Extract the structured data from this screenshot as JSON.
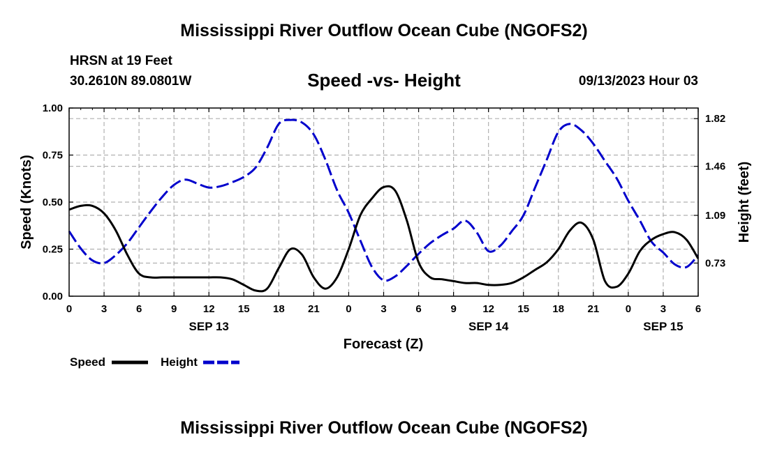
{
  "page": {
    "title": "Mississippi River Outflow Ocean Cube (NGOFS2)",
    "footer_title": "Mississippi River Outflow Ocean Cube (NGOFS2)",
    "station": "HRSN at 19 Feet",
    "coordinates": "30.2610N  89.0801W",
    "datetime": "09/13/2023 Hour 03"
  },
  "chart_data": {
    "type": "line",
    "title": "Speed -vs- Height",
    "xlabel": "Forecast (Z)",
    "ylabel": "Speed (Knots)",
    "y2label": "Height (feet)",
    "x_range": [
      0,
      54
    ],
    "ylim": [
      0,
      1.0
    ],
    "y2lim": [
      0.48,
      1.9
    ],
    "x_ticks": [
      0,
      3,
      6,
      9,
      12,
      15,
      18,
      21,
      24,
      27,
      30,
      33,
      36,
      39,
      42,
      45,
      48,
      51,
      54
    ],
    "x_tick_labels": [
      "0",
      "3",
      "6",
      "9",
      "12",
      "15",
      "18",
      "21",
      "0",
      "3",
      "6",
      "9",
      "12",
      "15",
      "18",
      "21",
      "0",
      "3",
      "6"
    ],
    "day_labels": [
      {
        "label": "SEP 13",
        "x": 12
      },
      {
        "label": "SEP 14",
        "x": 36
      },
      {
        "label": "SEP 15",
        "x": 51
      }
    ],
    "y_ticks": [
      0,
      0.25,
      0.5,
      0.75,
      1.0
    ],
    "y_tick_labels": [
      "0.00",
      "0.25",
      "0.50",
      "0.75",
      "1.00"
    ],
    "y2_ticks": [
      0.73,
      1.09,
      1.46,
      1.82
    ],
    "y2_tick_labels": [
      "0.73",
      "1.09",
      "1.46",
      "1.82"
    ],
    "grid": true,
    "legend_position": "bottom-left",
    "series": [
      {
        "name": "Speed",
        "axis": "left",
        "color": "#000000",
        "dash": "solid",
        "x": [
          0,
          1,
          2,
          3,
          4,
          5,
          6,
          7,
          8,
          9,
          10,
          11,
          12,
          13,
          14,
          15,
          16,
          17,
          18,
          19,
          20,
          21,
          22,
          23,
          24,
          25,
          26,
          27,
          28,
          29,
          30,
          31,
          32,
          33,
          34,
          35,
          36,
          37,
          38,
          39,
          40,
          41,
          42,
          43,
          44,
          45,
          46,
          47,
          48,
          49,
          50,
          51,
          52,
          53,
          54
        ],
        "values": [
          0.46,
          0.48,
          0.48,
          0.44,
          0.35,
          0.22,
          0.12,
          0.1,
          0.1,
          0.1,
          0.1,
          0.1,
          0.1,
          0.1,
          0.09,
          0.06,
          0.03,
          0.04,
          0.15,
          0.25,
          0.22,
          0.1,
          0.04,
          0.1,
          0.25,
          0.43,
          0.52,
          0.58,
          0.56,
          0.4,
          0.18,
          0.1,
          0.09,
          0.08,
          0.07,
          0.07,
          0.06,
          0.06,
          0.07,
          0.1,
          0.14,
          0.18,
          0.25,
          0.35,
          0.39,
          0.3,
          0.08,
          0.05,
          0.12,
          0.24,
          0.3,
          0.33,
          0.34,
          0.3,
          0.2
        ]
      },
      {
        "name": "Height",
        "axis": "right",
        "color": "#0000cc",
        "dash": "dashed",
        "x": [
          0,
          1,
          2,
          3,
          4,
          5,
          6,
          7,
          8,
          9,
          10,
          11,
          12,
          13,
          14,
          15,
          16,
          17,
          18,
          19,
          20,
          21,
          22,
          23,
          24,
          25,
          26,
          27,
          28,
          29,
          30,
          31,
          32,
          33,
          34,
          35,
          36,
          37,
          38,
          39,
          40,
          41,
          42,
          43,
          44,
          45,
          46,
          47,
          48,
          49,
          50,
          51,
          52,
          53,
          54
        ],
        "values": [
          0.97,
          0.84,
          0.75,
          0.73,
          0.79,
          0.88,
          1.0,
          1.12,
          1.23,
          1.32,
          1.36,
          1.33,
          1.3,
          1.31,
          1.34,
          1.38,
          1.45,
          1.6,
          1.78,
          1.81,
          1.79,
          1.7,
          1.51,
          1.28,
          1.11,
          0.9,
          0.7,
          0.6,
          0.63,
          0.71,
          0.8,
          0.88,
          0.94,
          0.99,
          1.05,
          0.96,
          0.82,
          0.86,
          0.97,
          1.09,
          1.3,
          1.51,
          1.72,
          1.78,
          1.73,
          1.63,
          1.5,
          1.37,
          1.2,
          1.05,
          0.89,
          0.81,
          0.72,
          0.7,
          0.79
        ]
      }
    ]
  }
}
